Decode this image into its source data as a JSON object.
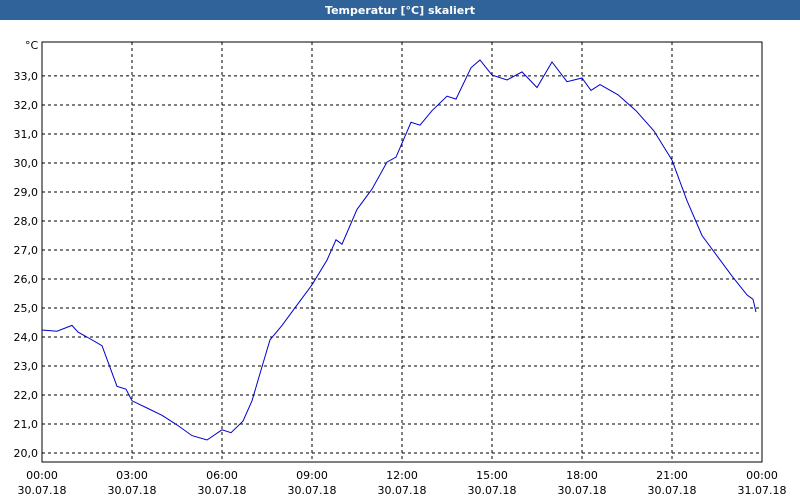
{
  "window": {
    "title": "Temperatur [°C] skaliert"
  },
  "chart_data": {
    "type": "line",
    "y_unit": "°C",
    "x": [
      0,
      0.5,
      1,
      1.2,
      1.5,
      2,
      2.3,
      2.5,
      2.8,
      3,
      3.5,
      4,
      4.5,
      5,
      5.5,
      6,
      6.3,
      6.7,
      7,
      7.3,
      7.6,
      8,
      8.5,
      9,
      9.5,
      9.8,
      10,
      10.5,
      11,
      11.5,
      11.8,
      12.3,
      12.6,
      13,
      13.5,
      13.8,
      14.3,
      14.6,
      15,
      15.5,
      16,
      16.5,
      17,
      17.5,
      18,
      18.3,
      18.6,
      19.2,
      19.8,
      20.4,
      21,
      21.5,
      22,
      22.5,
      23,
      23.5,
      23.7,
      23.8
    ],
    "series": [
      {
        "name": "Temperatur",
        "color": "#0000cc",
        "values": [
          24.24,
          24.2,
          24.4,
          24.17,
          24.0,
          23.7,
          22.86,
          22.3,
          22.2,
          21.8,
          21.55,
          21.3,
          20.97,
          20.6,
          20.45,
          20.8,
          20.7,
          21.1,
          21.8,
          22.86,
          23.9,
          24.4,
          25.1,
          25.8,
          26.65,
          27.35,
          27.2,
          28.4,
          29.1,
          30.03,
          30.2,
          31.4,
          31.3,
          31.8,
          32.3,
          32.2,
          33.28,
          33.55,
          33.03,
          32.86,
          33.14,
          32.6,
          33.48,
          32.8,
          32.93,
          32.5,
          32.7,
          32.35,
          31.8,
          31.1,
          30.1,
          28.7,
          27.5,
          26.8,
          26.1,
          25.45,
          25.3,
          24.86
        ]
      }
    ],
    "xlim": [
      0,
      24
    ],
    "xticks": [
      {
        "value": 0,
        "label": "00:00"
      },
      {
        "value": 3,
        "label": "03:00"
      },
      {
        "value": 6,
        "label": "06:00"
      },
      {
        "value": 9,
        "label": "09:00"
      },
      {
        "value": 12,
        "label": "12:00"
      },
      {
        "value": 15,
        "label": "15:00"
      },
      {
        "value": 18,
        "label": "18:00"
      },
      {
        "value": 21,
        "label": "21:00"
      },
      {
        "value": 24,
        "label": "00:00"
      }
    ],
    "xtick_dates": [
      "30.07.18",
      "30.07.18",
      "30.07.18",
      "30.07.18",
      "30.07.18",
      "30.07.18",
      "30.07.18",
      "30.07.18",
      "31.07.18"
    ],
    "ylim": [
      19.69,
      34.17
    ],
    "yticks": [
      {
        "value": 20,
        "label": "20,0"
      },
      {
        "value": 21,
        "label": "21,0"
      },
      {
        "value": 22,
        "label": "22,0"
      },
      {
        "value": 23,
        "label": "23,0"
      },
      {
        "value": 24,
        "label": "24,0"
      },
      {
        "value": 25,
        "label": "25,0"
      },
      {
        "value": 26,
        "label": "26,0"
      },
      {
        "value": 27,
        "label": "27,0"
      },
      {
        "value": 28,
        "label": "28,0"
      },
      {
        "value": 29,
        "label": "29,0"
      },
      {
        "value": 30,
        "label": "30,0"
      },
      {
        "value": 31,
        "label": "31,0"
      },
      {
        "value": 32,
        "label": "32,0"
      },
      {
        "value": 33,
        "label": "33,0"
      }
    ],
    "grid": true
  }
}
